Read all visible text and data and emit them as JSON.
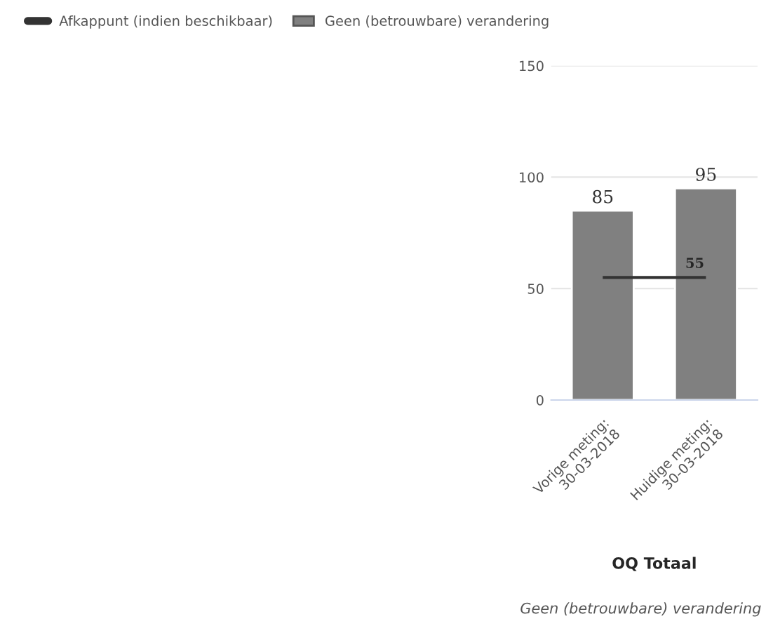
{
  "chart_data": {
    "type": "bar",
    "categories": [
      "Vorige meting:\n30-03-2018",
      "Huidige meting:\n30-03-2018"
    ],
    "series": [
      {
        "name": "Geen (betrouwbare) verandering",
        "color": "#808080",
        "values": [
          85,
          95
        ]
      }
    ],
    "ylim": [
      0,
      150
    ],
    "yticks": [
      0,
      50,
      100,
      150
    ],
    "grid": "y",
    "data_labels": true,
    "ref_lines": [
      {
        "axis": "y",
        "value": 55,
        "label": "Afkappunt (indien beschikbaar)",
        "color": "#333333",
        "line_style": "solid"
      }
    ],
    "xlabel": "OQ Totaal",
    "annotations": [
      {
        "text": "55",
        "y": 55
      },
      "Geen (betrouwbare) verandering"
    ],
    "legend": "top left"
  }
}
